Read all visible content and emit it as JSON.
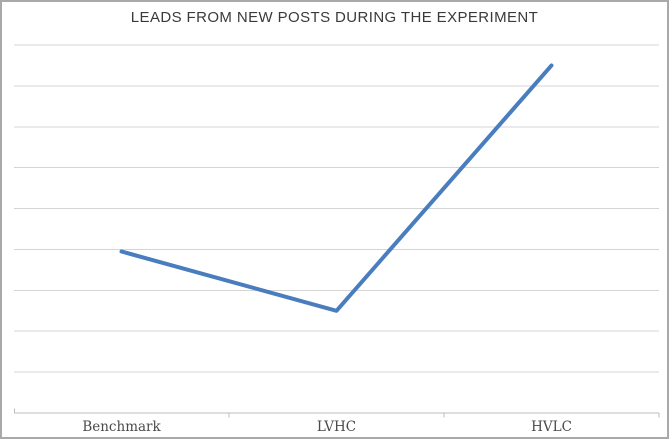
{
  "window": {
    "background": "#ffffff",
    "border_color": "#a9a9a9"
  },
  "chart_data": {
    "type": "line",
    "title": "LEADS FROM NEW POSTS DURING THE EXPERIMENT",
    "categories": [
      "Benchmark",
      "LVHC",
      "HVLC"
    ],
    "values": [
      3.95,
      2.5,
      8.5
    ],
    "xlabel": "",
    "ylabel": "",
    "ylim": [
      0,
      9
    ],
    "gridline_interval": 1,
    "grid": true,
    "legend": "none",
    "y_axis_labels_visible": false,
    "series_count": 1,
    "line_color": "#4a7dbe",
    "gridline_color": "#d4d4d4",
    "axis_color": "#bdbdbd",
    "title_color": "#3a3a3a",
    "label_color": "#4a4a4a"
  }
}
